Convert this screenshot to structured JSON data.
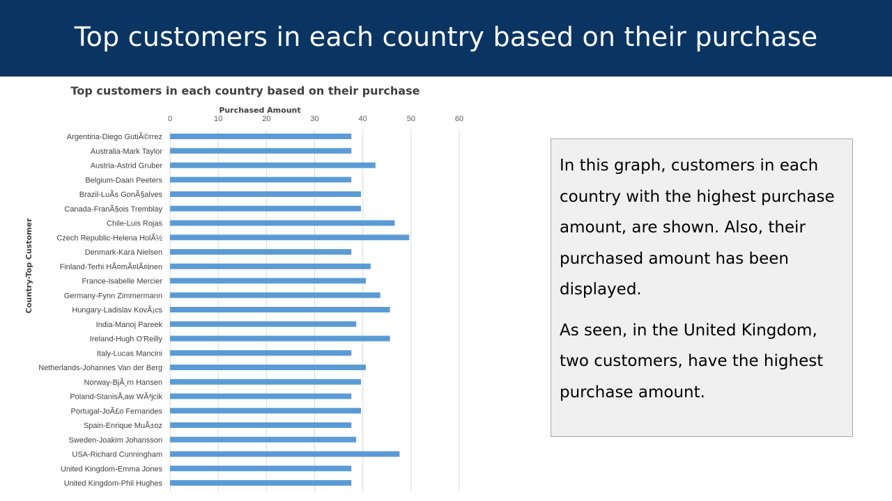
{
  "slide": {
    "title": "Top customers in each country based on their purchase"
  },
  "chart_data": {
    "type": "bar",
    "orientation": "horizontal",
    "title": "Top customers in each country based on their purchase",
    "xlabel": "Purchased Amount",
    "ylabel": "Country-Top Customer",
    "xlim": [
      0,
      60
    ],
    "xticks": [
      "0",
      "10",
      "20",
      "30",
      "40",
      "50",
      "60"
    ],
    "x_axis_position": "top",
    "grid": true,
    "bar_color": "#5b9bd5",
    "categories": [
      "Argentina-Diego GutiÃ©rrez",
      "Australia-Mark Taylor",
      "Austria-Astrid Gruber",
      "Belgium-Daan Peeters",
      "Brazil-LuÃ­s GonÃ§alves",
      "Canada-FranÃ§ois Tremblay",
      "Chile-Luis Rojas",
      "Czech Republic-Helena HolÃ½",
      "Denmark-Kara Nielsen",
      "Finland-Terhi HÃ¤mÃ¤lÃ¤inen",
      "France-Isabelle Mercier",
      "Germany-Fynn Zimmermann",
      "Hungary-Ladislav KovÃ¡cs",
      "India-Manoj Pareek",
      "Ireland-Hugh O'Reilly",
      "Italy-Lucas Mancini",
      "Netherlands-Johannes Van der Berg",
      "Norway-BjÃ¸rn Hansen",
      "Poland-StanisÅ‚aw WÃ³jcik",
      "Portugal-JoÃ£o Fernandes",
      "Spain-Enrique MuÃ±oz",
      "Sweden-Joakim Johansson",
      "USA-Richard Cunningham",
      "United Kingdom-Emma Jones",
      "United Kingdom-Phil Hughes"
    ],
    "values": [
      37.62,
      37.62,
      42.62,
      37.62,
      39.62,
      39.62,
      46.62,
      49.62,
      37.62,
      41.62,
      40.62,
      43.62,
      45.62,
      38.62,
      45.62,
      37.62,
      40.62,
      39.62,
      37.62,
      39.62,
      37.62,
      38.62,
      47.62,
      37.62,
      37.62
    ]
  },
  "note": {
    "paragraph1": "In this graph, customers in each country with the highest purchase amount, are shown. Also, their purchased amount has been displayed.",
    "paragraph2": "As seen, in the United Kingdom, two customers, have the highest purchase amount."
  }
}
